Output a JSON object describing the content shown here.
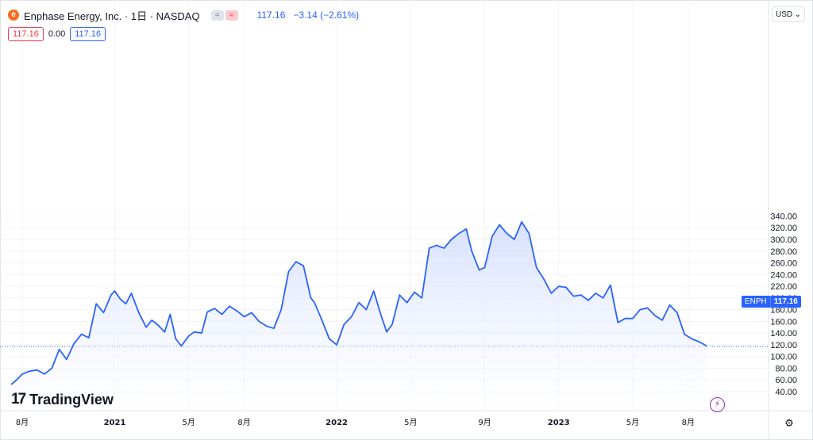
{
  "header": {
    "logo_letter": "e",
    "title": "Enphase Energy, Inc. · 1日 · NASDAQ",
    "badge_left": "=",
    "badge_right": "≈",
    "last_price": "117.16",
    "change": "−3.14 (−2.61%)",
    "currency": "USD"
  },
  "legend": {
    "bid": "117.16",
    "spread": "0.00",
    "ask": "117.16"
  },
  "price_tag": {
    "ticker": "ENPH",
    "value": "117.16"
  },
  "branding": {
    "mark": "17",
    "name": "TradingView"
  },
  "colors": {
    "line": "#2962ff",
    "area_top": "#c9d6ff",
    "area_bottom": "#ffffff",
    "grid": "#f0f3fa",
    "axis_text": "#131722",
    "last_price_line": "#2962ff"
  },
  "icons": {
    "currency_chevron": "chevron-down-icon",
    "flash": "lightning-icon",
    "settings": "gear-icon"
  },
  "chart_data": {
    "type": "area",
    "title": "",
    "xlabel": "",
    "ylabel": "",
    "ylim": [
      30,
      350
    ],
    "y_ticks": [
      40,
      60,
      80,
      100,
      120,
      140,
      160,
      180,
      200,
      220,
      240,
      260,
      280,
      300,
      320,
      340
    ],
    "x_ticks": [
      {
        "label": "8月",
        "x": 0.0
      },
      {
        "label": "2021",
        "x": 5.0
      },
      {
        "label": "5月",
        "x": 9.0
      },
      {
        "label": "8月",
        "x": 12.0
      },
      {
        "label": "2022",
        "x": 17.0
      },
      {
        "label": "5月",
        "x": 21.0
      },
      {
        "label": "9月",
        "x": 25.0
      },
      {
        "label": "2023",
        "x": 29.0
      },
      {
        "label": "5月",
        "x": 33.0
      },
      {
        "label": "8月",
        "x": 36.0
      }
    ],
    "last_value": 117.16,
    "series": [
      {
        "x": [
          -0.6,
          -0.3,
          0.0,
          0.4,
          0.8,
          1.2,
          1.6,
          2.0,
          2.4,
          2.8,
          3.2,
          3.6,
          4.0,
          4.4,
          4.8,
          5.0,
          5.3,
          5.6,
          5.9,
          6.3,
          6.7,
          7.0,
          7.3,
          7.7,
          8.0,
          8.3,
          8.6,
          9.0,
          9.3,
          9.7,
          10.0,
          10.4,
          10.8,
          11.2,
          11.6,
          12.0,
          12.4,
          12.8,
          13.2,
          13.6,
          14.0,
          14.4,
          14.8,
          15.2,
          15.6,
          15.8,
          16.2,
          16.6,
          17.0,
          17.4,
          17.8,
          18.2,
          18.6,
          19.0,
          19.4,
          19.7,
          20.0,
          20.4,
          20.8,
          21.2,
          21.6,
          22.0,
          22.4,
          22.8,
          23.2,
          23.6,
          24.0,
          24.3,
          24.7,
          25.0,
          25.4,
          25.8,
          26.2,
          26.6,
          27.0,
          27.4,
          27.8,
          28.2,
          28.6,
          29.0,
          29.4,
          29.8,
          30.2,
          30.6,
          31.0,
          31.4,
          31.8,
          32.2,
          32.6,
          33.0,
          33.4,
          33.8,
          34.2,
          34.6,
          35.0,
          35.4,
          35.8,
          36.2,
          36.6,
          37.0
        ],
        "y": [
          52,
          60,
          70,
          75,
          77,
          70,
          80,
          112,
          95,
          122,
          138,
          132,
          190,
          175,
          205,
          212,
          198,
          190,
          208,
          175,
          150,
          162,
          155,
          142,
          172,
          130,
          118,
          135,
          142,
          140,
          176,
          182,
          172,
          186,
          178,
          168,
          175,
          160,
          152,
          148,
          180,
          245,
          262,
          255,
          200,
          192,
          162,
          130,
          120,
          155,
          168,
          192,
          180,
          212,
          170,
          142,
          155,
          205,
          192,
          210,
          200,
          285,
          290,
          285,
          300,
          310,
          318,
          280,
          248,
          252,
          305,
          325,
          310,
          300,
          330,
          310,
          252,
          232,
          208,
          220,
          218,
          203,
          205,
          196,
          208,
          200,
          222,
          158,
          165,
          165,
          180,
          183,
          170,
          162,
          188,
          175,
          138,
          130,
          125,
          118
        ]
      }
    ]
  }
}
